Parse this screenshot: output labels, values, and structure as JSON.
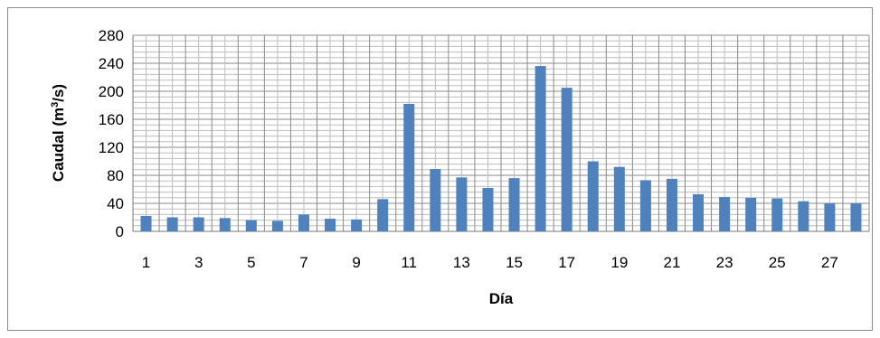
{
  "chart_data": {
    "type": "bar",
    "title": "",
    "xlabel": "Día",
    "ylabel_parts": {
      "pre": "Caudal (m",
      "sup": "3",
      "post": "/s)"
    },
    "ylim": [
      0,
      280
    ],
    "yticks": [
      "0",
      "40",
      "80",
      "120",
      "160",
      "200",
      "240",
      "280"
    ],
    "grid": true,
    "legend": "none",
    "bar_color": "#4f81bd",
    "categories": [
      1,
      2,
      3,
      4,
      5,
      6,
      7,
      8,
      9,
      10,
      11,
      12,
      13,
      14,
      15,
      16,
      17,
      18,
      19,
      20,
      21,
      22,
      23,
      24,
      25,
      26,
      27,
      28
    ],
    "xtick_labels": [
      "1",
      "3",
      "5",
      "7",
      "9",
      "11",
      "13",
      "15",
      "17",
      "19",
      "21",
      "23",
      "25",
      "27"
    ],
    "values": [
      22,
      20,
      20,
      19,
      16,
      15,
      24,
      18,
      17,
      46,
      182,
      89,
      77,
      62,
      76,
      236,
      205,
      100,
      92,
      73,
      75,
      53,
      49,
      48,
      47,
      43,
      40,
      40
    ]
  }
}
